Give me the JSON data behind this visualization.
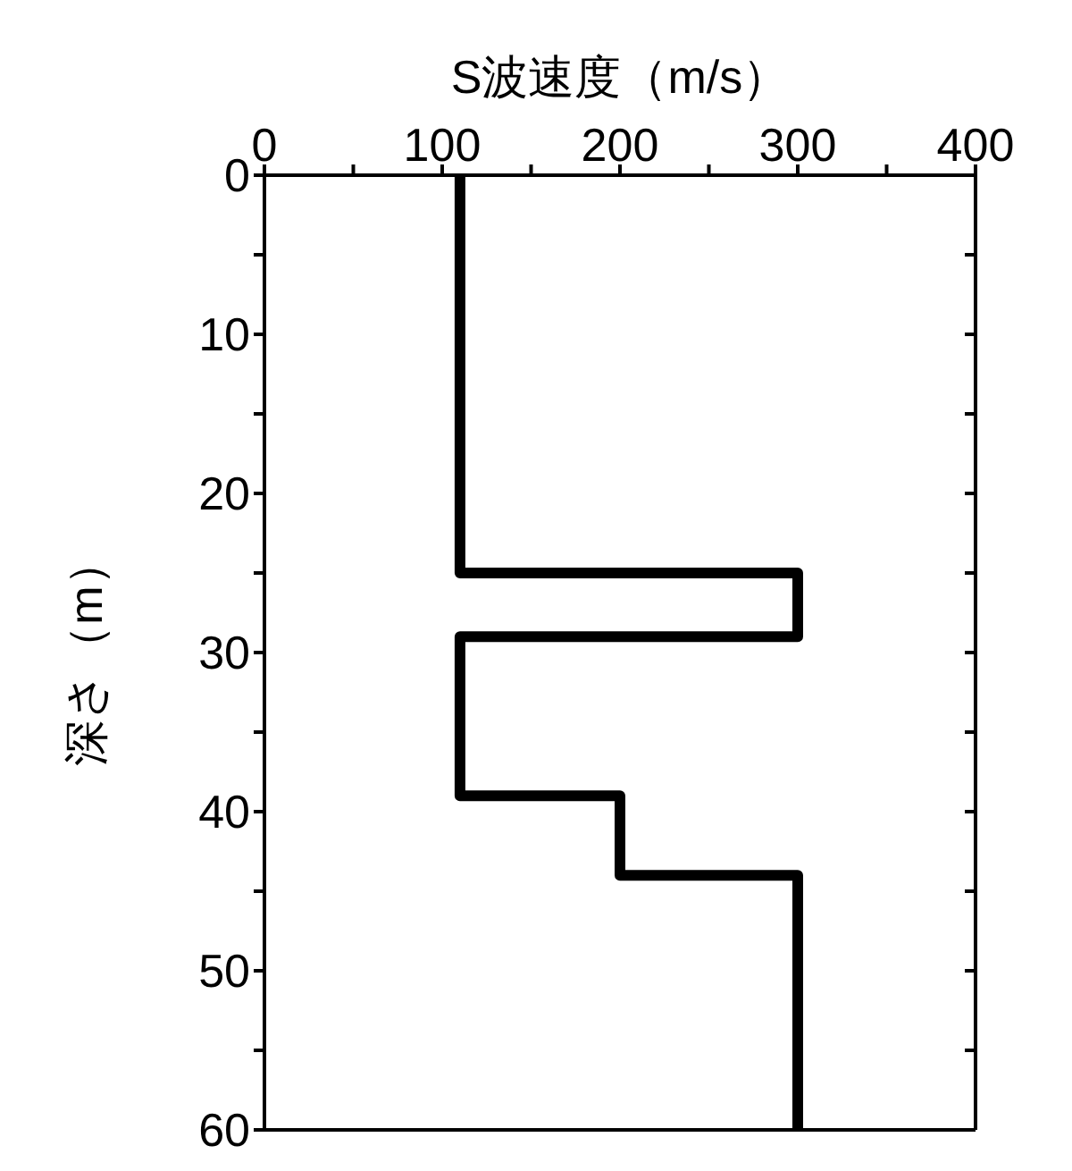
{
  "chart_data": {
    "type": "line",
    "xlabel": "S波速度（m/s）",
    "ylabel": "深さ（m）",
    "series": [
      {
        "color": "#000000",
        "x": [
          110,
          110,
          300,
          300,
          110,
          110,
          200,
          200,
          300,
          300
        ],
        "values": [
          0,
          25,
          25,
          29,
          29,
          39,
          39,
          44,
          44,
          60
        ]
      }
    ],
    "xlim": [
      0,
      400
    ],
    "xticks": [
      0,
      {
        "value": 50,
        "label": null
      },
      100,
      {
        "value": 150,
        "label": null
      },
      200,
      {
        "value": 250,
        "label": null
      },
      300,
      {
        "value": 350,
        "label": null
      },
      400
    ],
    "ylim": [
      60,
      0
    ],
    "yticks": [
      0,
      {
        "value": 5,
        "label": null
      },
      10,
      {
        "value": 15,
        "label": null
      },
      20,
      {
        "value": 25,
        "label": null
      },
      30,
      {
        "value": 35,
        "label": null
      },
      40,
      {
        "value": 45,
        "label": null
      },
      50,
      {
        "value": 55,
        "label": null
      },
      60
    ],
    "grid": false,
    "legend": false,
    "marker": "none",
    "line_style": "solid"
  }
}
